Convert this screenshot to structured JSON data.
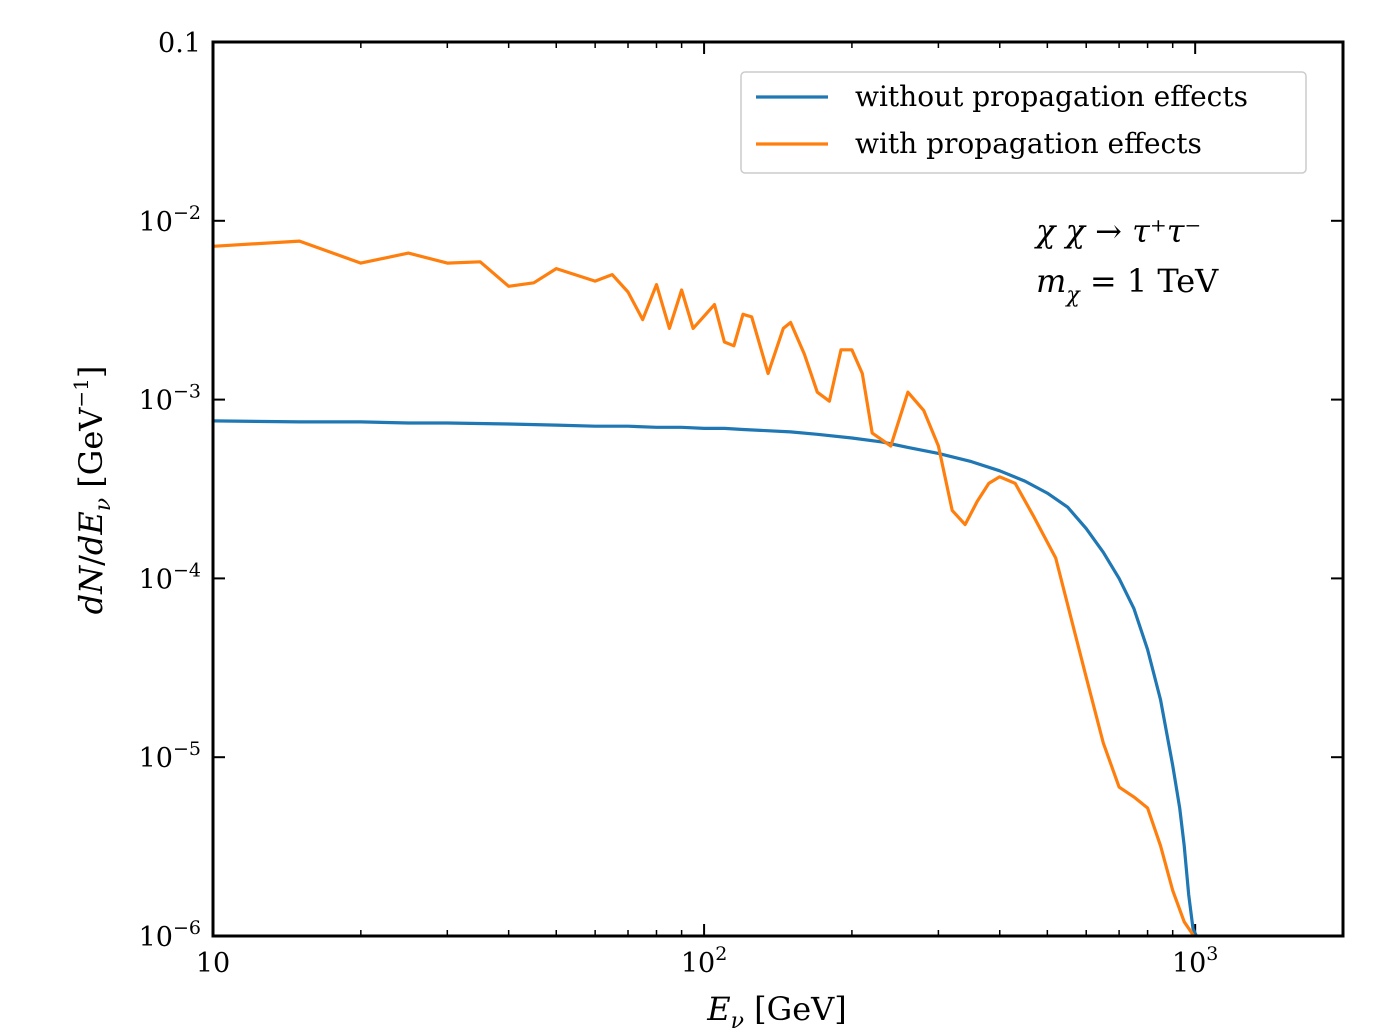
{
  "chart_data": {
    "type": "line",
    "xlabel": "E_ν [GeV]",
    "ylabel": "dN/dE_ν [GeV^−1]",
    "xscale": "log",
    "yscale": "log",
    "xlim": [
      10,
      2000
    ],
    "ylim": [
      1e-06,
      0.1
    ],
    "x_ticks": [
      {
        "value": 10,
        "base": "10",
        "exp": ""
      },
      {
        "value": 100,
        "base": "10",
        "exp": "2"
      },
      {
        "value": 1000,
        "base": "10",
        "exp": "3"
      }
    ],
    "y_ticks": [
      {
        "value": 0.1,
        "base": "0.1",
        "exp": ""
      },
      {
        "value": 0.01,
        "base": "10",
        "exp": "−2"
      },
      {
        "value": 0.001,
        "base": "10",
        "exp": "−3"
      },
      {
        "value": 0.0001,
        "base": "10",
        "exp": "−4"
      },
      {
        "value": 1e-05,
        "base": "10",
        "exp": "−5"
      },
      {
        "value": 1e-06,
        "base": "10",
        "exp": "−6"
      }
    ],
    "legend_position": "top-right",
    "grid": false,
    "annotation": {
      "line1": "χ χ → τ⁺τ⁻",
      "line2_lhs": "m",
      "line2_sub": "χ",
      "line2_rhs": " = 1 TeV"
    },
    "series": [
      {
        "name": "without propagation effects",
        "color": "#1f77b4",
        "x": [
          10,
          15,
          20,
          25,
          30,
          40,
          50,
          60,
          70,
          80,
          90,
          100,
          110,
          120,
          150,
          170,
          200,
          230,
          260,
          300,
          350,
          400,
          450,
          500,
          550,
          600,
          650,
          700,
          750,
          800,
          850,
          900,
          930,
          950,
          970,
          990,
          1010,
          1020
        ],
        "y": [
          0.00076,
          0.00075,
          0.00075,
          0.00074,
          0.00074,
          0.00073,
          0.00072,
          0.00071,
          0.00071,
          0.0007,
          0.0007,
          0.00069,
          0.00069,
          0.00068,
          0.00066,
          0.00064,
          0.00061,
          0.00058,
          0.00054,
          0.0005,
          0.00045,
          0.0004,
          0.00035,
          0.0003,
          0.00025,
          0.00019,
          0.00014,
          0.0001,
          6.8e-05,
          4e-05,
          2.1e-05,
          9e-06,
          5.2e-06,
          3.2e-06,
          1.7e-06,
          1.1e-06,
          9e-07,
          7e-07
        ]
      },
      {
        "name": "with propagation effects",
        "color": "#ff7f0e",
        "x": [
          10,
          15,
          20,
          25,
          30,
          35,
          40,
          45,
          50,
          60,
          65,
          70,
          75,
          80,
          85,
          90,
          95,
          105,
          110,
          115,
          120,
          125,
          135,
          145,
          150,
          160,
          170,
          180,
          190,
          200,
          210,
          220,
          240,
          260,
          280,
          300,
          320,
          340,
          360,
          380,
          400,
          430,
          470,
          520,
          600,
          650,
          700,
          750,
          800,
          850,
          900,
          950,
          1000
        ],
        "y": [
          0.0072,
          0.0077,
          0.0058,
          0.0066,
          0.0058,
          0.0059,
          0.0043,
          0.0045,
          0.0054,
          0.0046,
          0.005,
          0.004,
          0.0028,
          0.0044,
          0.0025,
          0.0041,
          0.0025,
          0.0034,
          0.0021,
          0.002,
          0.003,
          0.0029,
          0.0014,
          0.0025,
          0.0027,
          0.0018,
          0.0011,
          0.00098,
          0.0019,
          0.0019,
          0.0014,
          0.00065,
          0.00055,
          0.0011,
          0.00087,
          0.00055,
          0.00024,
          0.0002,
          0.00027,
          0.00034,
          0.00037,
          0.00034,
          0.00022,
          0.00013,
          2.8e-05,
          1.2e-05,
          6.8e-06,
          6e-06,
          5.2e-06,
          3.2e-06,
          1.8e-06,
          1.2e-06,
          9e-07
        ]
      }
    ]
  }
}
